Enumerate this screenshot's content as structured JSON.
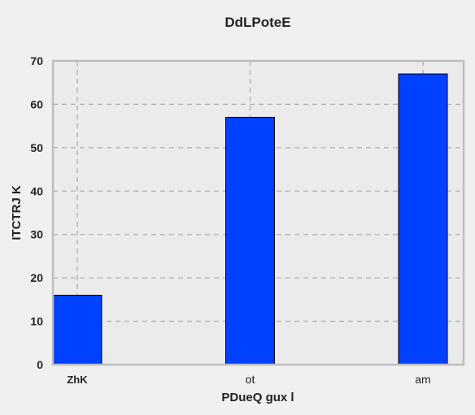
{
  "chart_data": {
    "type": "bar",
    "title": "DdLPoteE",
    "xlabel": "PDueQ gux l",
    "ylabel": "ITCTRJ K",
    "categories": [
      "ZhK",
      "ot",
      "am"
    ],
    "values": [
      16,
      57,
      67
    ],
    "ylim": [
      0,
      70
    ],
    "yticks": [
      0,
      10,
      20,
      30,
      40,
      50,
      60,
      70
    ],
    "grid": true,
    "bar_color": "#0040ff",
    "plot_background": "#ebebeb",
    "grid_color": "#b0b0b0"
  }
}
